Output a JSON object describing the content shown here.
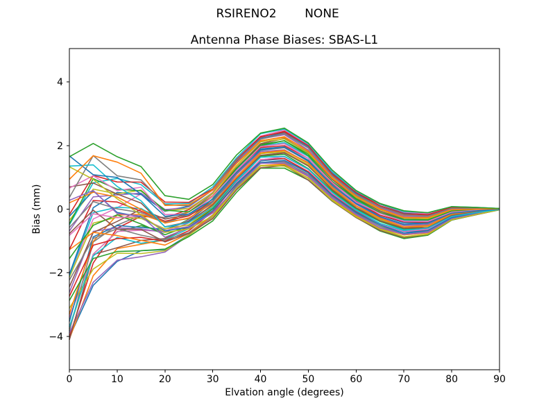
{
  "colors": {
    "background": "#ffffff",
    "axes_edge": "#000000",
    "text": "#000000"
  },
  "chart_data": {
    "type": "line",
    "suptitle": {
      "left": "RSIRENO2",
      "right": "NONE"
    },
    "title": "Antenna Phase Biases: SBAS-L1",
    "xlabel": "Elvation angle (degrees)",
    "ylabel": "Bias (mm)",
    "xlim": [
      0,
      90
    ],
    "ylim": [
      -5.05,
      5.05
    ],
    "xticks": [
      0,
      10,
      20,
      30,
      40,
      50,
      60,
      70,
      80,
      90
    ],
    "xtick_labels": [
      "0",
      "10",
      "20",
      "30",
      "40",
      "50",
      "60",
      "70",
      "80",
      "90"
    ],
    "yticks": [
      -4,
      -2,
      0,
      2,
      4
    ],
    "ytick_labels": [
      "−4",
      "−2",
      "0",
      "2",
      "4"
    ],
    "grid": false,
    "legend": false,
    "n_series": 43,
    "line_width": 1.6,
    "palette": [
      "#1f77b4",
      "#ff7f0e",
      "#2ca02c",
      "#d62728",
      "#9467bd",
      "#8c564b",
      "#e377c2",
      "#7f7f7f",
      "#bcbd22",
      "#17becf"
    ],
    "x_deg": [
      0,
      5,
      10,
      15,
      20,
      25,
      30,
      35,
      40,
      45,
      50,
      55,
      60,
      65,
      70,
      75,
      80,
      85,
      90
    ],
    "envelope_top": [
      1.45,
      1.95,
      1.65,
      1.4,
      0.5,
      0.35,
      0.8,
      1.7,
      2.4,
      2.55,
      2.1,
      1.2,
      0.6,
      0.2,
      -0.05,
      -0.1,
      0.09,
      0.06,
      0.02
    ],
    "envelope_bottom": [
      -4.5,
      -2.45,
      -1.9,
      -1.75,
      -1.55,
      -1.0,
      -0.4,
      0.5,
      1.25,
      1.3,
      0.9,
      0.25,
      -0.28,
      -0.68,
      -0.9,
      -0.82,
      -0.35,
      -0.17,
      -0.02
    ],
    "envelope_mid": [
      -1.53,
      -0.25,
      -0.13,
      -0.18,
      -0.53,
      -0.33,
      0.2,
      1.1,
      1.83,
      1.93,
      1.5,
      0.73,
      0.16,
      -0.24,
      -0.48,
      -0.46,
      -0.13,
      -0.06,
      0.0
    ],
    "envelope_half": [
      2.98,
      2.2,
      1.78,
      1.58,
      1.03,
      0.68,
      0.6,
      0.6,
      0.58,
      0.63,
      0.6,
      0.48,
      0.44,
      0.44,
      0.43,
      0.36,
      0.22,
      0.12,
      0.02
    ],
    "series_offset_low_elev": [
      -1.0,
      -0.952,
      -0.905,
      -0.857,
      -0.81,
      -0.762,
      -0.714,
      -0.667,
      -0.619,
      -0.571,
      -0.524,
      -0.476,
      -0.429,
      -0.381,
      -0.333,
      -0.286,
      -0.238,
      -0.19,
      -0.143,
      -0.095,
      -0.048,
      0.0,
      0.048,
      0.095,
      0.143,
      0.19,
      0.238,
      0.286,
      0.333,
      0.381,
      0.429,
      0.476,
      0.524,
      0.571,
      0.619,
      0.667,
      0.714,
      0.762,
      0.81,
      0.857,
      0.905,
      0.952,
      1.0
    ],
    "series_offset_high_elev": [
      -0.571,
      -0.095,
      0.381,
      0.857,
      -0.714,
      -0.238,
      0.238,
      0.714,
      -0.857,
      -0.381,
      0.095,
      0.571,
      -1.0,
      -0.524,
      -0.048,
      0.429,
      0.905,
      -0.667,
      -0.19,
      0.286,
      0.762,
      -0.81,
      -0.333,
      0.143,
      0.619,
      -0.952,
      -0.476,
      0.0,
      0.476,
      0.952,
      -0.619,
      -0.143,
      0.333,
      0.81,
      -0.762,
      -0.286,
      0.19,
      0.667,
      -0.905,
      -0.429,
      0.048,
      0.524,
      1.0
    ],
    "order_blend": {
      "end_deg": 50,
      "power": 2
    },
    "noise": {
      "scale": 0.17,
      "floor": 0.3,
      "seed": 12345
    }
  }
}
